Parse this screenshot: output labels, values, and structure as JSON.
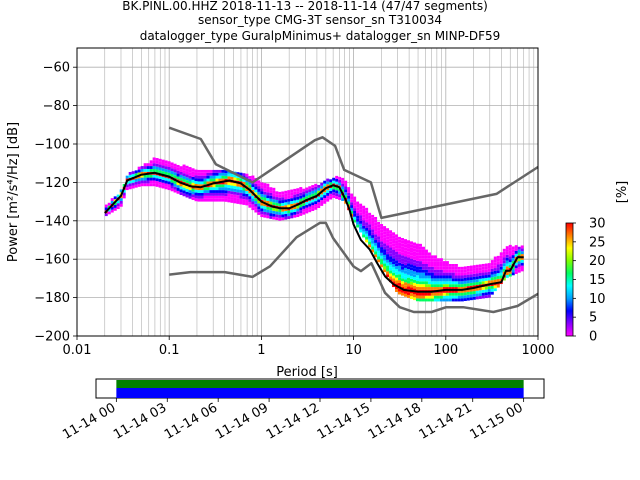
{
  "chart_data": {
    "type": "heatmap",
    "title_lines": [
      "BK.PINL.00.HHZ   2018-11-13 -- 2018-11-14  (47/47 segments)",
      "sensor_type CMG-3T sensor_sn T310034",
      "datalogger_type GuralpMinimus+ datalogger_sn MINP-DF59"
    ],
    "xlabel": "Period [s]",
    "ylabel": "Power [m²/s⁴/Hz] [dB]",
    "x_scale": "log",
    "xlim": [
      0.01,
      1000
    ],
    "ylim": [
      -200,
      -50
    ],
    "x_tick_labels": [
      "0.01",
      "0.1",
      "1",
      "10",
      "100",
      "1000"
    ],
    "x_tick_values": [
      0.01,
      0.1,
      1,
      10,
      100,
      1000
    ],
    "y_tick_labels": [
      "−60",
      "−80",
      "−100",
      "−120",
      "−140",
      "−160",
      "−180",
      "−200"
    ],
    "y_tick_values": [
      -60,
      -80,
      -100,
      -120,
      -140,
      -160,
      -180,
      -200
    ],
    "grid": true,
    "series": [
      {
        "name": "",
        "role": "high noise model",
        "color": "#666666",
        "x": [
          0.1,
          0.22,
          0.32,
          0.8,
          3.8,
          4.6,
          6.3,
          7.9,
          15.4,
          20,
          354.8,
          1000
        ],
        "y": [
          -91.5,
          -97.4,
          -110.5,
          -120,
          -98,
          -96.5,
          -101,
          -113.5,
          -120,
          -138.5,
          -126,
          -112
        ]
      },
      {
        "name": "",
        "role": "low noise model",
        "color": "#666666",
        "x": [
          0.1,
          0.17,
          0.4,
          0.8,
          1.24,
          2.4,
          4.3,
          5.0,
          6.0,
          10.0,
          12.0,
          15.6,
          21.9,
          31.6,
          45.0,
          70.0,
          101.0,
          154.0,
          328.0,
          600.0,
          1000.0
        ],
        "y": [
          -168,
          -166.7,
          -166.7,
          -169.2,
          -163.7,
          -148.6,
          -141.1,
          -141.1,
          -149,
          -163.8,
          -166.2,
          -162.1,
          -177.5,
          -185,
          -187.5,
          -187.5,
          -185,
          -185,
          -187.5,
          -184.4,
          -178
        ]
      },
      {
        "name": "",
        "role": "mean",
        "color": "#000000",
        "x": [
          0.02,
          0.025,
          0.03,
          0.035,
          0.05,
          0.07,
          0.1,
          0.13,
          0.17,
          0.22,
          0.3,
          0.45,
          0.6,
          0.75,
          1.0,
          1.3,
          1.6,
          2.0,
          2.5,
          3.0,
          4.0,
          5.0,
          6.0,
          7.0,
          8.0,
          9.0,
          10.0,
          12.0,
          15.0,
          18.0,
          22.0,
          27.0,
          35.0,
          50.0,
          70.0,
          100.0,
          150.0,
          200.0,
          300.0,
          400.0,
          450.0,
          500.0,
          600.0,
          700.0
        ],
        "y": [
          -136,
          -131,
          -127,
          -119,
          -116,
          -115,
          -117,
          -120,
          -122,
          -122.5,
          -120.5,
          -119,
          -120.5,
          -124,
          -130,
          -132.5,
          -133.5,
          -133.5,
          -131.5,
          -129.5,
          -127,
          -123,
          -121.5,
          -122.5,
          -128,
          -134,
          -142,
          -150,
          -155,
          -162,
          -169,
          -173,
          -176,
          -177,
          -177,
          -176,
          -176,
          -175,
          -173,
          -172,
          -166,
          -166,
          -159,
          -159
        ]
      }
    ],
    "heatmap": {
      "description": "",
      "colormap": [
        "#ff00ff",
        "#8800ff",
        "#0000ff",
        "#00a0ff",
        "#00ffff",
        "#00ff60",
        "#80ff00",
        "#ffff00",
        "#ff8000",
        "#ff0000"
      ],
      "upper_envelope": [
        [
          0.02,
          -133
        ],
        [
          0.03,
          -125
        ],
        [
          0.035,
          -117
        ],
        [
          0.05,
          -112
        ],
        [
          0.07,
          -108
        ],
        [
          0.1,
          -110
        ],
        [
          0.2,
          -114
        ],
        [
          0.4,
          -114
        ],
        [
          0.7,
          -116
        ],
        [
          1.0,
          -120
        ],
        [
          1.6,
          -126
        ],
        [
          2.5,
          -124
        ],
        [
          4.0,
          -122
        ],
        [
          6.0,
          -118
        ],
        [
          8.0,
          -118
        ],
        [
          10.0,
          -128
        ],
        [
          20.0,
          -142
        ],
        [
          30.0,
          -148
        ],
        [
          50.0,
          -152
        ],
        [
          80.0,
          -160
        ],
        [
          150.0,
          -165
        ],
        [
          300.0,
          -163
        ],
        [
          450.0,
          -154
        ],
        [
          700.0,
          -154
        ]
      ],
      "lower_envelope": [
        [
          0.02,
          -138
        ],
        [
          0.03,
          -133
        ],
        [
          0.035,
          -124
        ],
        [
          0.05,
          -122
        ],
        [
          0.07,
          -122
        ],
        [
          0.1,
          -124
        ],
        [
          0.2,
          -130
        ],
        [
          0.4,
          -130
        ],
        [
          0.7,
          -132
        ],
        [
          1.0,
          -138
        ],
        [
          1.6,
          -140
        ],
        [
          2.5,
          -138
        ],
        [
          4.0,
          -134
        ],
        [
          6.0,
          -128
        ],
        [
          8.0,
          -130
        ],
        [
          10.0,
          -140
        ],
        [
          20.0,
          -164
        ],
        [
          30.0,
          -178
        ],
        [
          50.0,
          -182
        ],
        [
          80.0,
          -182
        ],
        [
          150.0,
          -182
        ],
        [
          300.0,
          -180
        ],
        [
          450.0,
          -170
        ],
        [
          700.0,
          -166
        ]
      ]
    },
    "colorbar": {
      "label": "[%]",
      "range": [
        0,
        30
      ],
      "tick_labels": [
        "0",
        "5",
        "10",
        "15",
        "20",
        "25",
        "30"
      ],
      "tick_values": [
        0,
        5,
        10,
        15,
        20,
        25,
        30
      ]
    },
    "timeline": {
      "tick_labels": [
        "11-14 00",
        "11-14 03",
        "11-14 06",
        "11-14 09",
        "11-14 12",
        "11-14 15",
        "11-14 18",
        "11-14 21",
        "11-15 00"
      ],
      "tick_hours": [
        0,
        3,
        6,
        9,
        12,
        15,
        18,
        21,
        24
      ],
      "span_hours": [
        -1.2,
        25.2
      ],
      "coverage_hours": [
        0,
        24
      ],
      "data_color": "#0000ff",
      "processed_color": "#008000"
    }
  }
}
